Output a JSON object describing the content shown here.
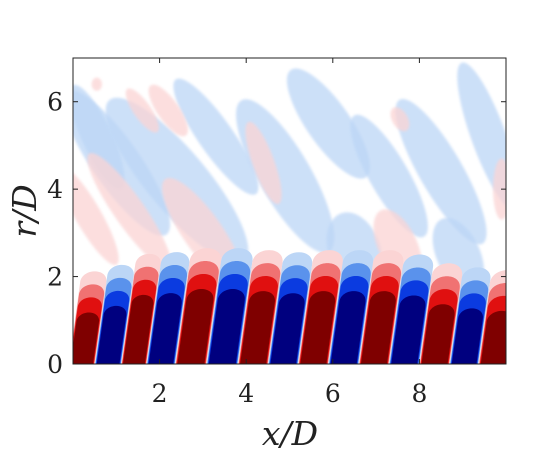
{
  "chart_data": {
    "type": "heatmap",
    "title": "",
    "xlabel": "x/D",
    "ylabel": "r/D",
    "xlim": [
      0,
      10
    ],
    "ylim": [
      0,
      7
    ],
    "x_ticks": [
      "2",
      "4",
      "6",
      "8"
    ],
    "y_ticks": [
      "0",
      "2",
      "4",
      "6"
    ],
    "x_tick_values": [
      2,
      4,
      6,
      8
    ],
    "y_tick_values": [
      0,
      2,
      4,
      6
    ],
    "colormap": [
      "#00007f",
      "#0b3be0",
      "#5a92ec",
      "#bcd6f6",
      "#ffffff",
      "#fbd4d4",
      "#f07272",
      "#e01010",
      "#7f0000"
    ],
    "near_axis_structures": {
      "description_x_centers": [
        0.18,
        0.83,
        1.4,
        2.0,
        2.72,
        3.45,
        4.17,
        4.85,
        5.55,
        6.25,
        6.95,
        7.65,
        8.35,
        9.05,
        9.68
      ],
      "sign": [
        1,
        -1,
        1,
        -1,
        1,
        -1,
        1,
        -1,
        1,
        -1,
        1,
        -1,
        1,
        -1,
        1
      ],
      "top_r": [
        1.25,
        1.4,
        1.65,
        1.7,
        1.8,
        1.8,
        1.75,
        1.7,
        1.75,
        1.75,
        1.75,
        1.65,
        1.45,
        1.35,
        1.3
      ]
    }
  }
}
